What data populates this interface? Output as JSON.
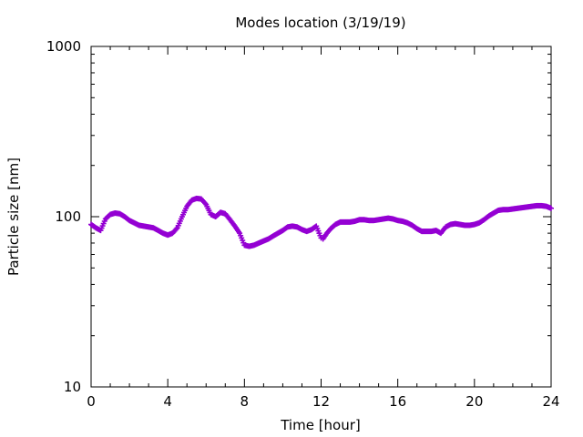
{
  "chart_data": {
    "type": "scatter",
    "title": "Modes location (3/19/19)",
    "xlabel": "Time [hour]",
    "ylabel": "Particle size [nm]",
    "xlim": [
      0,
      24
    ],
    "ylim": [
      10,
      1000
    ],
    "yscale": "log",
    "grid": false,
    "legend": "none",
    "marker": "plus",
    "color": "#9400d3",
    "x_ticks": [
      {
        "value": 0,
        "label": "0"
      },
      {
        "value": 4,
        "label": "4"
      },
      {
        "value": 8,
        "label": "8"
      },
      {
        "value": 12,
        "label": "12"
      },
      {
        "value": 16,
        "label": "16"
      },
      {
        "value": 20,
        "label": "20"
      },
      {
        "value": 24,
        "label": "24"
      }
    ],
    "y_ticks": [
      {
        "value": 10,
        "label": "10"
      },
      {
        "value": 100,
        "label": "100"
      },
      {
        "value": 1000,
        "label": "1000"
      }
    ],
    "series": [
      {
        "x": [
          0.0,
          0.25,
          0.5,
          0.75,
          1.0,
          1.25,
          1.5,
          1.75,
          2.0,
          2.25,
          2.5,
          2.75,
          3.0,
          3.25,
          3.5,
          3.75,
          4.0,
          4.25,
          4.5,
          4.75,
          5.0,
          5.25,
          5.5,
          5.75,
          6.0,
          6.25,
          6.5,
          6.75,
          7.0,
          7.25,
          7.5,
          7.75,
          8.0,
          8.25,
          8.5,
          8.75,
          9.0,
          9.25,
          9.5,
          9.75,
          10.0,
          10.25,
          10.5,
          10.75,
          11.0,
          11.25,
          11.5,
          11.75,
          12.0,
          12.1,
          12.3,
          12.5,
          12.75,
          13.0,
          13.25,
          13.5,
          13.75,
          14.0,
          14.25,
          14.5,
          14.75,
          15.0,
          15.25,
          15.5,
          15.75,
          16.0,
          16.25,
          16.5,
          16.75,
          17.0,
          17.25,
          17.5,
          17.75,
          18.0,
          18.25,
          18.5,
          18.75,
          19.0,
          19.25,
          19.5,
          19.75,
          20.0,
          20.25,
          20.5,
          20.75,
          21.0,
          21.25,
          21.5,
          21.75,
          22.0,
          22.25,
          22.5,
          22.75,
          23.0,
          23.25,
          23.5,
          23.75,
          24.0
        ],
        "y": [
          90,
          86,
          83,
          97,
          103,
          105,
          104,
          100,
          95,
          92,
          89,
          88,
          87,
          86,
          83,
          80,
          78,
          80,
          86,
          100,
          115,
          125,
          128,
          127,
          118,
          103,
          100,
          106,
          104,
          96,
          88,
          80,
          68,
          67,
          68,
          70,
          72,
          74,
          77,
          80,
          83,
          87,
          88,
          87,
          84,
          82,
          84,
          88,
          75,
          74,
          80,
          85,
          90,
          93,
          93,
          93,
          94,
          96,
          96,
          95,
          95,
          96,
          97,
          98,
          97,
          95,
          94,
          92,
          89,
          85,
          82,
          82,
          82,
          83,
          80,
          87,
          90,
          91,
          90,
          89,
          89,
          90,
          92,
          96,
          101,
          105,
          109,
          110,
          110,
          111,
          112,
          113,
          114,
          115,
          116,
          116,
          115,
          112
        ]
      }
    ]
  }
}
